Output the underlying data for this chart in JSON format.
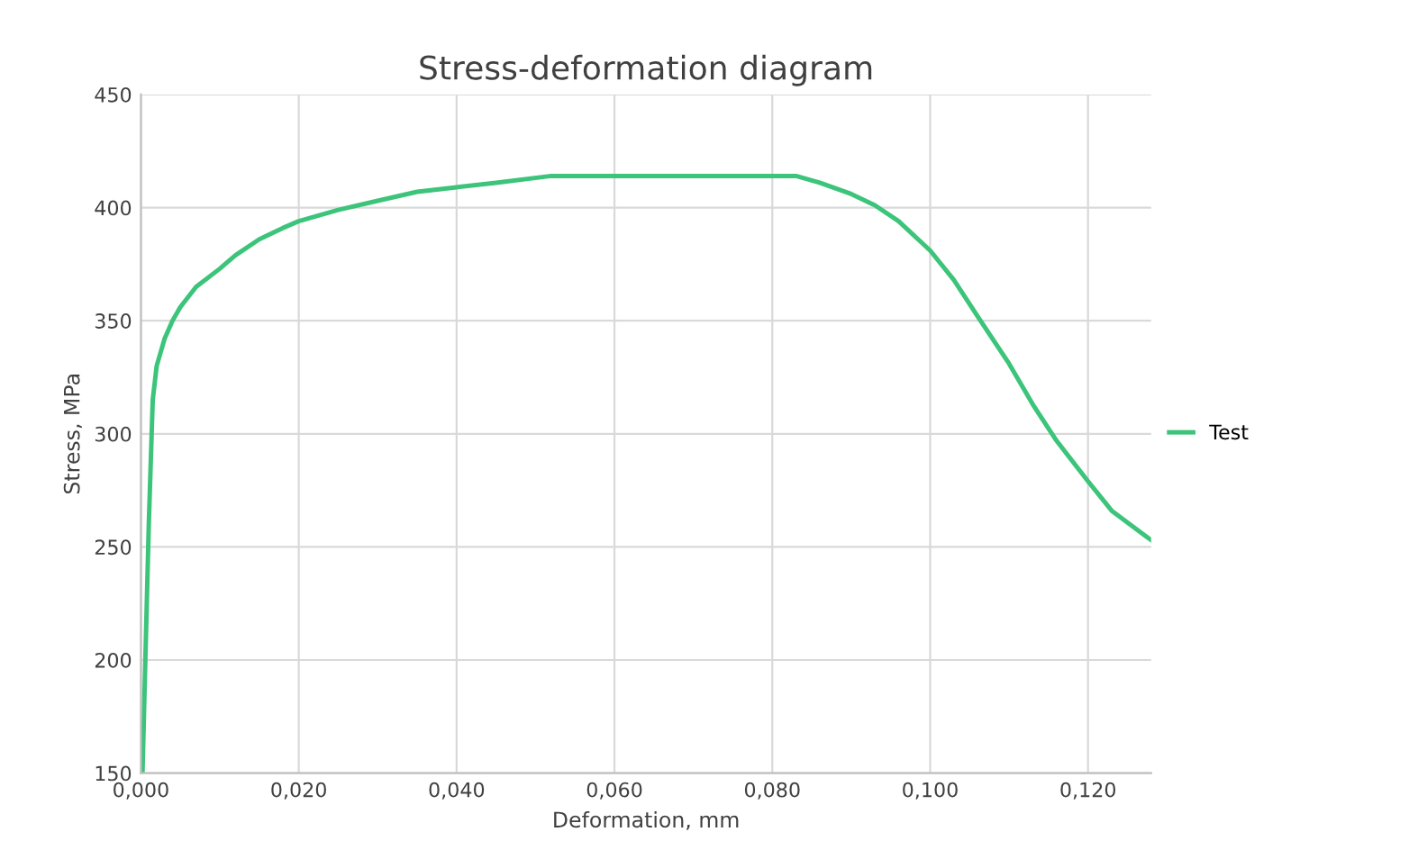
{
  "chart_data": {
    "type": "line",
    "title": "Stress-deformation diagram",
    "xlabel": "Deformation, mm",
    "ylabel": "Stress, MPa",
    "xlim": [
      0,
      0.128
    ],
    "ylim": [
      150,
      450
    ],
    "xticks": [
      {
        "value": 0,
        "label": "0,000"
      },
      {
        "value": 0.02,
        "label": "0,020"
      },
      {
        "value": 0.04,
        "label": "0,040"
      },
      {
        "value": 0.06,
        "label": "0,060"
      },
      {
        "value": 0.08,
        "label": "0,080"
      },
      {
        "value": 0.1,
        "label": "0,100"
      },
      {
        "value": 0.12,
        "label": "0,120"
      }
    ],
    "yticks": [
      150,
      200,
      250,
      300,
      350,
      400,
      450
    ],
    "grid": true,
    "legend": "right",
    "series": [
      {
        "name": "Test",
        "color": "#3cc47a",
        "x": [
          0.0002,
          0.001,
          0.0015,
          0.002,
          0.003,
          0.004,
          0.005,
          0.007,
          0.01,
          0.012,
          0.015,
          0.018,
          0.02,
          0.025,
          0.03,
          0.035,
          0.04,
          0.045,
          0.052,
          0.06,
          0.07,
          0.08,
          0.083,
          0.086,
          0.09,
          0.093,
          0.096,
          0.1,
          0.103,
          0.106,
          0.11,
          0.113,
          0.116,
          0.12,
          0.123,
          0.128
        ],
        "values": [
          150,
          260,
          315,
          330,
          342,
          350,
          356,
          365,
          373,
          379,
          386,
          391,
          394,
          399,
          403,
          407,
          409,
          411,
          414,
          414,
          414,
          414,
          414,
          411,
          406,
          401,
          394,
          381,
          368,
          352,
          331,
          313,
          297,
          279,
          266,
          253
        ]
      }
    ]
  }
}
